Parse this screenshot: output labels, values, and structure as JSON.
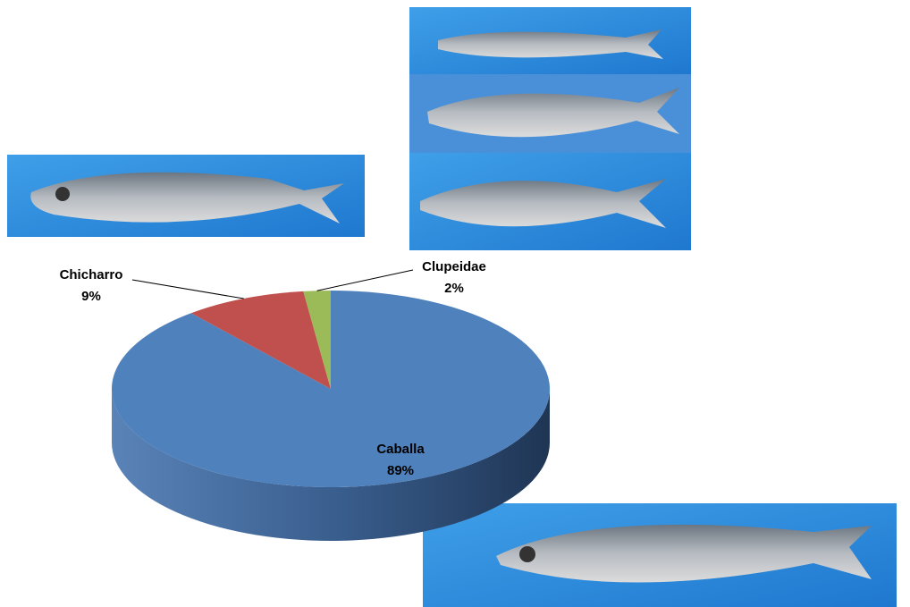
{
  "chart_data": {
    "type": "pie",
    "categories": [
      "Caballa",
      "Chicharro",
      "Clupeidae"
    ],
    "values": [
      89,
      9,
      2
    ],
    "value_labels": [
      "89%",
      "9%",
      "2%"
    ],
    "colors": [
      "#4f81bd",
      "#c0504d",
      "#9bbb59"
    ],
    "side_colors": [
      "#2c4d75",
      "#7d2c2a",
      "#5f7a30"
    ]
  }
}
